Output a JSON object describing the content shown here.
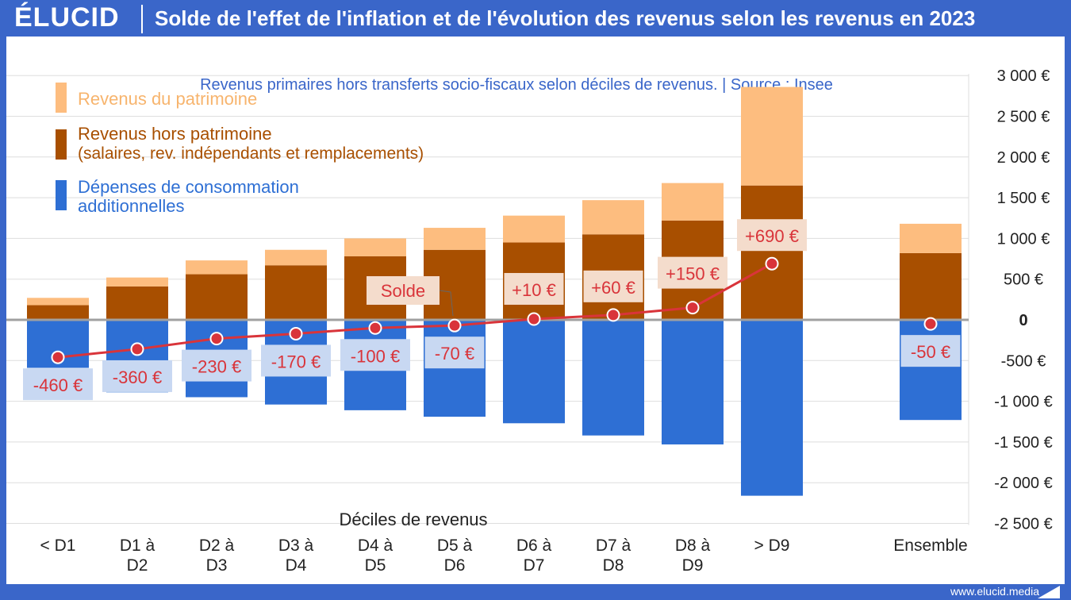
{
  "header": {
    "logo": "ÉLUCID",
    "title": "Solde de l'effet de l'inflation et de l'évolution des revenus selon les revenus en 2023",
    "subtitle": "Revenus primaires hors transferts socio-fiscaux selon déciles de revenus.  |  Source : Insee"
  },
  "footer": {
    "url": "www.elucid.media"
  },
  "colors": {
    "patrimoine": "#fdbd7f",
    "hors_patrimoine": "#a84f00",
    "depenses": "#2e6fd4",
    "solde": "#d9343a",
    "zero_line": "#a0a0a0",
    "label_bg_pos": "#f4dccc",
    "label_bg_neg": "#c8d8f2"
  },
  "legend": [
    {
      "label": "Revenus du patrimoine",
      "color": "#fdbd7f",
      "text_color": "#f7b46d"
    },
    {
      "label": "Revenus hors patrimoine",
      "label2": "(salaires, rev. indépendants et remplacements)",
      "color": "#a84f00",
      "text_color": "#a84f00"
    },
    {
      "label": "Dépenses de consommation",
      "label2": "additionnelles",
      "color": "#2e6fd4",
      "text_color": "#2e6fd4"
    }
  ],
  "chart_data": {
    "type": "bar",
    "xlabel": "Déciles de revenus",
    "ylim": [
      -2500,
      3000
    ],
    "y_ticks": [
      3000,
      2500,
      2000,
      1500,
      1000,
      500,
      0,
      -500,
      -1000,
      -1500,
      -2000,
      -2500
    ],
    "y_tick_labels": [
      "3 000 €",
      "2 500 €",
      "2 000 €",
      "1 500 €",
      "1 000 €",
      "500 €",
      "0",
      "-500 €",
      "-1 000 €",
      "-1 500 €",
      "-2 000 €",
      "-2 500 €"
    ],
    "categories": [
      [
        "< D1"
      ],
      [
        "D1 à",
        "D2"
      ],
      [
        "D2 à",
        "D3"
      ],
      [
        "D3 à",
        "D4"
      ],
      [
        "D4 à",
        "D5"
      ],
      [
        "D5 à",
        "D6"
      ],
      [
        "D6 à",
        "D7"
      ],
      [
        "D7 à",
        "D8"
      ],
      [
        "D8 à",
        "D9"
      ],
      [
        "> D9"
      ],
      [
        "Ensemble"
      ]
    ],
    "series": [
      {
        "name": "Revenus hors patrimoine",
        "values": [
          180,
          410,
          560,
          670,
          780,
          860,
          950,
          1050,
          1220,
          1650,
          820
        ]
      },
      {
        "name": "Revenus du patrimoine",
        "values": [
          90,
          110,
          170,
          190,
          220,
          270,
          330,
          420,
          460,
          1210,
          360
        ]
      },
      {
        "name": "Dépenses de consommation additionnelles",
        "values": [
          -590,
          -890,
          -950,
          -1040,
          -1110,
          -1190,
          -1270,
          -1420,
          -1530,
          -2160,
          -1230
        ]
      },
      {
        "name": "Solde",
        "values": [
          -460,
          -360,
          -230,
          -170,
          -100,
          -70,
          10,
          60,
          150,
          690,
          -50
        ]
      }
    ],
    "solde_labels": [
      "-460 €",
      "-360 €",
      "-230 €",
      "-170 €",
      "-100 €",
      "-70 €",
      "+10 €",
      "+60 €",
      "+150 €",
      "+690 €",
      "-50 €"
    ],
    "solde_callout": "Solde"
  }
}
